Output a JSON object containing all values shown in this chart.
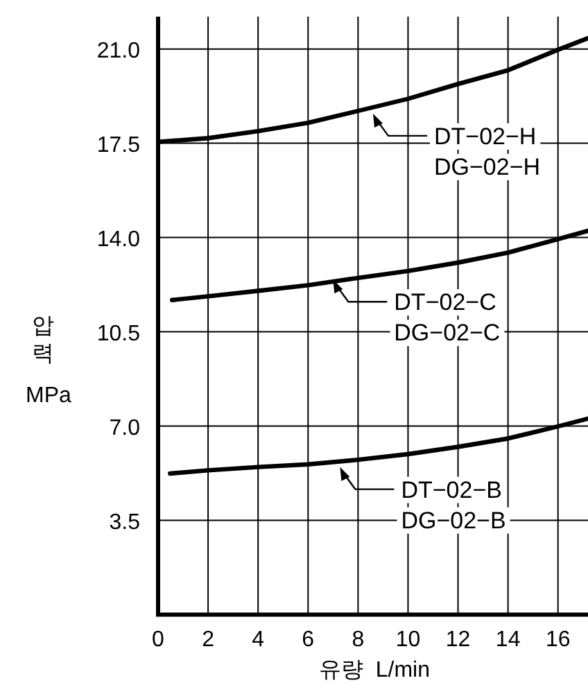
{
  "chart_data": {
    "type": "line",
    "xlabel": "유량  L/min",
    "ylabel": "압력 MPa",
    "xlim": [
      0,
      17.2
    ],
    "ylim": [
      0,
      22.2
    ],
    "xticks": [
      0,
      2,
      4,
      6,
      8,
      10,
      12,
      14,
      16
    ],
    "yticks": [
      {
        "value": 3.5,
        "label": "3.5"
      },
      {
        "value": 7,
        "label": "7.0"
      },
      {
        "value": 10.5,
        "label": "10.5"
      },
      {
        "value": 14,
        "label": "14.0"
      },
      {
        "value": 17.5,
        "label": "17.5"
      },
      {
        "value": 21,
        "label": "21.0"
      }
    ],
    "grid": true,
    "marker": "none",
    "line_style": "solid",
    "series": [
      {
        "color": "#000000",
        "x": [
          0,
          2,
          4,
          6,
          8,
          10,
          12,
          14,
          16,
          17.2
        ],
        "values": [
          17.55,
          17.69,
          17.95,
          18.26,
          18.7,
          19.15,
          19.7,
          20.21,
          20.97,
          21.4
        ]
      },
      {
        "color": "#000000",
        "x": [
          0.56,
          2,
          4,
          6,
          8,
          10,
          12,
          14,
          16,
          17.2
        ],
        "values": [
          11.68,
          11.82,
          12.02,
          12.23,
          12.5,
          12.76,
          13.07,
          13.44,
          13.94,
          14.25
        ]
      },
      {
        "color": "#000000",
        "x": [
          0.48,
          2,
          4,
          6,
          8,
          10,
          12,
          14,
          16,
          17.2
        ],
        "values": [
          5.24,
          5.36,
          5.48,
          5.58,
          5.75,
          5.96,
          6.23,
          6.54,
          6.99,
          7.28
        ]
      }
    ],
    "annotations": [
      {
        "text": "DT−02−H\nDG−02−H",
        "x": 8.6,
        "y": 18.6
      },
      {
        "text": "DT−02−C\nDG−02−C",
        "x": 7.0,
        "y": 12.44
      },
      {
        "text": "DT−02−B\nDG−02−B",
        "x": 7.28,
        "y": 5.48
      }
    ]
  }
}
